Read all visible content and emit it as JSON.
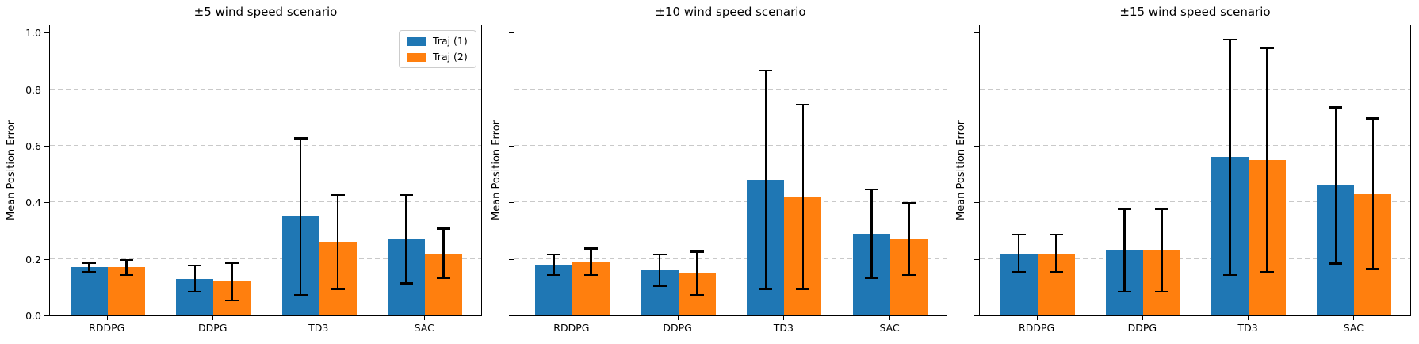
{
  "figure": {
    "kind": "matplotlib-style grouped bar chart, 3 subplots",
    "background": "#ffffff",
    "axis_color": "#000000",
    "grid_color": "#c9c9c9",
    "grid_style": "dashed horizontal",
    "errorbar_color": "#000000"
  },
  "legend": {
    "location": "upper right of first subplot",
    "items": [
      {
        "label": "Traj (1)",
        "color": "#1f77b4"
      },
      {
        "label": "Traj (2)",
        "color": "#ff7f0e"
      }
    ]
  },
  "chart_data": [
    {
      "type": "bar",
      "title": "±5 wind speed scenario",
      "xlabel": "",
      "ylabel": "Mean Position Error",
      "categories": [
        "RDDPG",
        "DDPG",
        "TD3",
        "SAC"
      ],
      "ylim": [
        0.0,
        1.03
      ],
      "yticks": [
        0.0,
        0.2,
        0.4,
        0.6,
        0.8,
        1.0
      ],
      "show_ytick_labels": true,
      "show_legend": true,
      "grid": true,
      "series": [
        {
          "name": "Traj (1)",
          "color": "#1f77b4",
          "values": [
            0.17,
            0.13,
            0.35,
            0.27
          ],
          "err_low": [
            0.15,
            0.08,
            0.07,
            0.11
          ],
          "err_high": [
            0.19,
            0.18,
            0.63,
            0.43
          ]
        },
        {
          "name": "Traj (2)",
          "color": "#ff7f0e",
          "values": [
            0.17,
            0.12,
            0.26,
            0.22
          ],
          "err_low": [
            0.14,
            0.05,
            0.09,
            0.13
          ],
          "err_high": [
            0.2,
            0.19,
            0.43,
            0.31
          ]
        }
      ]
    },
    {
      "type": "bar",
      "title": "±10 wind speed scenario",
      "xlabel": "",
      "ylabel": "Mean Position Error",
      "categories": [
        "RDDPG",
        "DDPG",
        "TD3",
        "SAC"
      ],
      "ylim": [
        0.0,
        1.03
      ],
      "yticks": [
        0.0,
        0.2,
        0.4,
        0.6,
        0.8,
        1.0
      ],
      "show_ytick_labels": false,
      "show_legend": false,
      "grid": true,
      "series": [
        {
          "name": "Traj (1)",
          "color": "#1f77b4",
          "values": [
            0.18,
            0.16,
            0.48,
            0.29
          ],
          "err_low": [
            0.14,
            0.1,
            0.09,
            0.13
          ],
          "err_high": [
            0.22,
            0.22,
            0.87,
            0.45
          ]
        },
        {
          "name": "Traj (2)",
          "color": "#ff7f0e",
          "values": [
            0.19,
            0.15,
            0.42,
            0.27
          ],
          "err_low": [
            0.14,
            0.07,
            0.09,
            0.14
          ],
          "err_high": [
            0.24,
            0.23,
            0.75,
            0.4
          ]
        }
      ]
    },
    {
      "type": "bar",
      "title": "±15 wind speed scenario",
      "xlabel": "",
      "ylabel": "Mean Position Error",
      "categories": [
        "RDDPG",
        "DDPG",
        "TD3",
        "SAC"
      ],
      "ylim": [
        0.0,
        1.03
      ],
      "yticks": [
        0.0,
        0.2,
        0.4,
        0.6,
        0.8,
        1.0
      ],
      "show_ytick_labels": false,
      "show_legend": false,
      "grid": true,
      "series": [
        {
          "name": "Traj (1)",
          "color": "#1f77b4",
          "values": [
            0.22,
            0.23,
            0.56,
            0.46
          ],
          "err_low": [
            0.15,
            0.08,
            0.14,
            0.18
          ],
          "err_high": [
            0.29,
            0.38,
            0.98,
            0.74
          ]
        },
        {
          "name": "Traj (2)",
          "color": "#ff7f0e",
          "values": [
            0.22,
            0.23,
            0.55,
            0.43
          ],
          "err_low": [
            0.15,
            0.08,
            0.15,
            0.16
          ],
          "err_high": [
            0.29,
            0.38,
            0.95,
            0.7
          ]
        }
      ]
    }
  ]
}
